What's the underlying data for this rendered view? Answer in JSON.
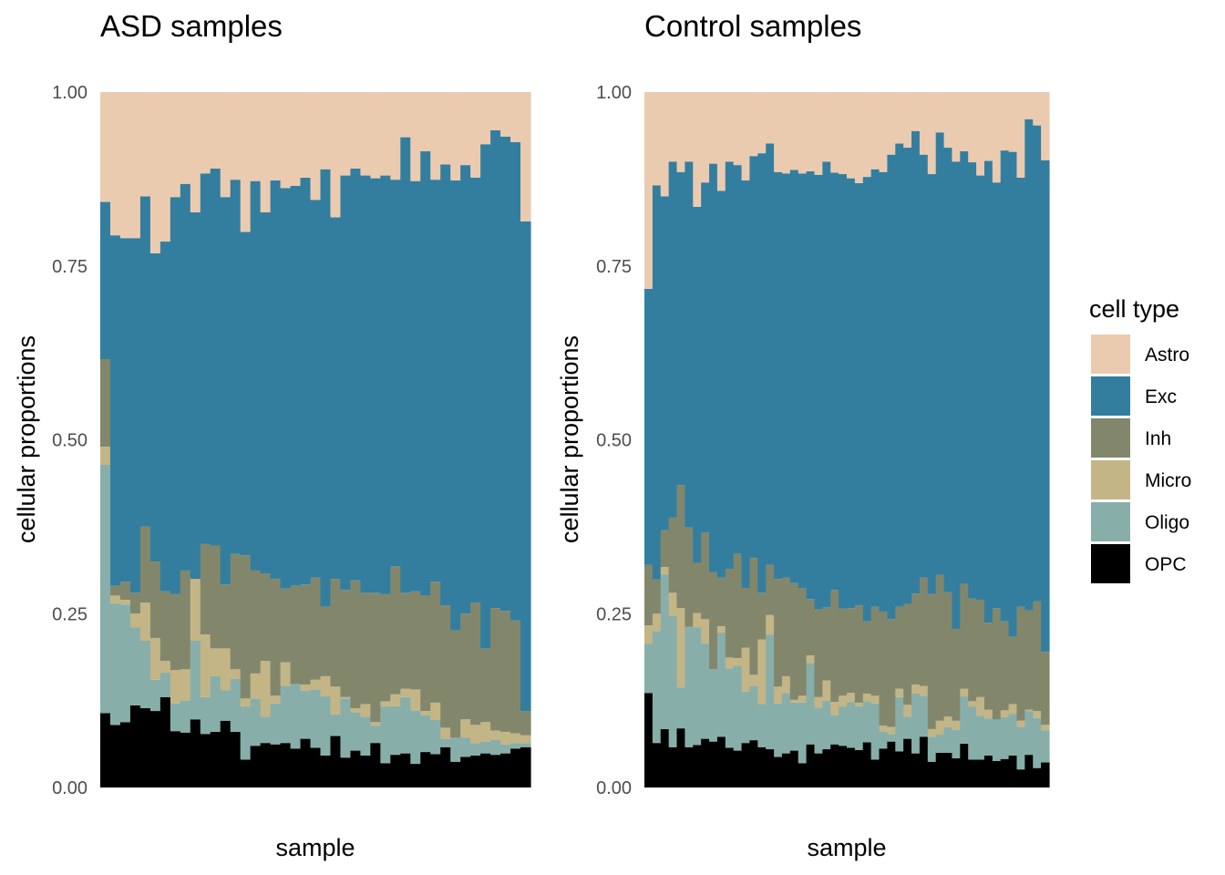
{
  "chart_data": {
    "type": "bar",
    "stacked": true,
    "cell_types": [
      "OPC",
      "Oligo",
      "Micro",
      "Inh",
      "Exc",
      "Astro"
    ],
    "colors": {
      "Astro": "#ebcbb0",
      "Exc": "#337e9f",
      "Inh": "#82876c",
      "Micro": "#c3b586",
      "Oligo": "#88aeaa",
      "OPC": "#000000"
    },
    "ylabel": "cellular proportions",
    "xlabel": "sample",
    "ylim": [
      0,
      1
    ],
    "yticks": [
      "0.00",
      "0.25",
      "0.50",
      "0.75",
      "1.00"
    ],
    "grid": false,
    "legend": {
      "title": "cell type",
      "position": "right",
      "entries": [
        "Astro",
        "Exc",
        "Inh",
        "Micro",
        "Oligo",
        "OPC"
      ]
    },
    "panels": [
      {
        "title": "ASD samples",
        "exc_top": [
          0.842,
          0.794,
          0.79,
          0.79,
          0.85,
          0.768,
          0.785,
          0.849,
          0.868,
          0.827,
          0.883,
          0.89,
          0.849,
          0.874,
          0.799,
          0.872,
          0.827,
          0.873,
          0.862,
          0.865,
          0.877,
          0.845,
          0.889,
          0.82,
          0.88,
          0.89,
          0.88,
          0.876,
          0.88,
          0.874,
          0.935,
          0.872,
          0.915,
          0.874,
          0.896,
          0.873,
          0.895,
          0.877,
          0.925,
          0.945,
          0.936,
          0.928,
          0.814
        ],
        "inh_top": [
          0.616,
          0.29,
          0.296,
          0.28,
          0.375,
          0.325,
          0.282,
          0.278,
          0.312,
          0.3,
          0.35,
          0.348,
          0.292,
          0.336,
          0.334,
          0.312,
          0.308,
          0.3,
          0.286,
          0.29,
          0.292,
          0.302,
          0.26,
          0.3,
          0.284,
          0.298,
          0.28,
          0.28,
          0.278,
          0.318,
          0.28,
          0.282,
          0.276,
          0.296,
          0.262,
          0.226,
          0.25,
          0.266,
          0.2,
          0.258,
          0.254,
          0.24,
          0.11
        ],
        "micro_top": [
          0.49,
          0.276,
          0.27,
          0.25,
          0.266,
          0.215,
          0.182,
          0.169,
          0.17,
          0.302,
          0.22,
          0.2,
          0.2,
          0.17,
          0.128,
          0.164,
          0.182,
          0.132,
          0.18,
          0.149,
          0.148,
          0.155,
          0.16,
          0.145,
          0.13,
          0.114,
          0.12,
          0.094,
          0.124,
          0.134,
          0.142,
          0.141,
          0.11,
          0.122,
          0.086,
          0.072,
          0.098,
          0.09,
          0.094,
          0.082,
          0.08,
          0.078,
          0.075
        ],
        "oligo_top": [
          0.464,
          0.265,
          0.263,
          0.23,
          0.211,
          0.155,
          0.165,
          0.121,
          0.125,
          0.211,
          0.13,
          0.16,
          0.14,
          0.156,
          0.116,
          0.128,
          0.102,
          0.121,
          0.146,
          0.154,
          0.139,
          0.141,
          0.131,
          0.105,
          0.128,
          0.108,
          0.102,
          0.089,
          0.116,
          0.117,
          0.13,
          0.111,
          0.104,
          0.097,
          0.07,
          0.095,
          0.072,
          0.064,
          0.066,
          0.069,
          0.062,
          0.064,
          0.064
        ],
        "opc_top": [
          0.107,
          0.09,
          0.094,
          0.118,
          0.114,
          0.11,
          0.13,
          0.081,
          0.079,
          0.098,
          0.077,
          0.08,
          0.096,
          0.08,
          0.04,
          0.06,
          0.064,
          0.062,
          0.064,
          0.056,
          0.07,
          0.057,
          0.046,
          0.074,
          0.043,
          0.053,
          0.046,
          0.064,
          0.035,
          0.047,
          0.049,
          0.034,
          0.051,
          0.048,
          0.058,
          0.037,
          0.044,
          0.046,
          0.049,
          0.047,
          0.049,
          0.056,
          0.058
        ]
      },
      {
        "title": "Control samples",
        "exc_top": [
          0.717,
          0.866,
          0.85,
          0.9,
          0.885,
          0.9,
          0.835,
          0.87,
          0.897,
          0.858,
          0.9,
          0.895,
          0.873,
          0.908,
          0.912,
          0.926,
          0.885,
          0.883,
          0.888,
          0.883,
          0.886,
          0.881,
          0.9,
          0.884,
          0.882,
          0.876,
          0.869,
          0.878,
          0.889,
          0.885,
          0.91,
          0.926,
          0.92,
          0.944,
          0.91,
          0.882,
          0.942,
          0.92,
          0.9,
          0.915,
          0.899,
          0.88,
          0.901,
          0.87,
          0.916,
          0.914,
          0.877,
          0.961,
          0.952,
          0.902
        ],
        "inh_top": [
          0.32,
          0.299,
          0.37,
          0.388,
          0.435,
          0.374,
          0.323,
          0.367,
          0.31,
          0.302,
          0.314,
          0.336,
          0.287,
          0.33,
          0.28,
          0.32,
          0.3,
          0.302,
          0.294,
          0.287,
          0.271,
          0.256,
          0.259,
          0.284,
          0.257,
          0.258,
          0.262,
          0.239,
          0.26,
          0.253,
          0.242,
          0.26,
          0.264,
          0.279,
          0.302,
          0.278,
          0.306,
          0.281,
          0.228,
          0.293,
          0.272,
          0.27,
          0.237,
          0.258,
          0.239,
          0.217,
          0.26,
          0.255,
          0.268,
          0.195
        ],
        "micro_top": [
          0.233,
          0.25,
          0.317,
          0.28,
          0.258,
          0.231,
          0.251,
          0.242,
          0.17,
          0.232,
          0.187,
          0.186,
          0.201,
          0.162,
          0.213,
          0.248,
          0.145,
          0.16,
          0.126,
          0.132,
          0.19,
          0.13,
          0.154,
          0.123,
          0.132,
          0.136,
          0.122,
          0.135,
          0.132,
          0.089,
          0.087,
          0.142,
          0.119,
          0.148,
          0.146,
          0.084,
          0.096,
          0.102,
          0.096,
          0.142,
          0.124,
          0.13,
          0.112,
          0.098,
          0.111,
          0.12,
          0.096,
          0.112,
          0.11,
          0.09
        ],
        "oligo_top": [
          0.207,
          0.225,
          0.306,
          0.247,
          0.144,
          0.231,
          0.23,
          0.207,
          0.17,
          0.223,
          0.171,
          0.175,
          0.138,
          0.146,
          0.12,
          0.22,
          0.121,
          0.136,
          0.122,
          0.122,
          0.179,
          0.115,
          0.125,
          0.104,
          0.116,
          0.123,
          0.117,
          0.124,
          0.121,
          0.081,
          0.077,
          0.13,
          0.102,
          0.135,
          0.132,
          0.073,
          0.076,
          0.087,
          0.083,
          0.131,
          0.116,
          0.103,
          0.099,
          0.1,
          0.101,
          0.106,
          0.087,
          0.11,
          0.1,
          0.082
        ],
        "opc_top": [
          0.136,
          0.064,
          0.084,
          0.058,
          0.085,
          0.058,
          0.061,
          0.07,
          0.066,
          0.073,
          0.057,
          0.053,
          0.064,
          0.068,
          0.058,
          0.055,
          0.044,
          0.049,
          0.053,
          0.035,
          0.062,
          0.049,
          0.055,
          0.062,
          0.06,
          0.057,
          0.054,
          0.065,
          0.04,
          0.056,
          0.066,
          0.052,
          0.07,
          0.049,
          0.073,
          0.037,
          0.05,
          0.05,
          0.042,
          0.063,
          0.04,
          0.04,
          0.046,
          0.038,
          0.041,
          0.046,
          0.026,
          0.047,
          0.028,
          0.036
        ]
      }
    ]
  }
}
